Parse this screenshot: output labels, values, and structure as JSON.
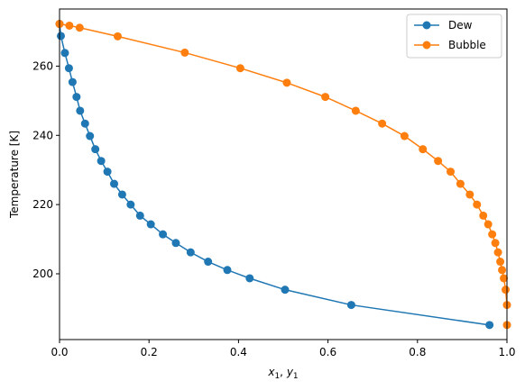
{
  "chart_data": {
    "type": "line",
    "xlabel_main": "x",
    "xlabel_sub1": "1",
    "xlabel_sep": ", ",
    "xlabel_main2": "y",
    "xlabel_sub2": "1",
    "ylabel": "Temperature [K]",
    "xlim": [
      0.0,
      1.0
    ],
    "ylim": [
      181.0,
      276.5
    ],
    "xticks": [
      0.0,
      0.2,
      0.4,
      0.6,
      0.8,
      1.0
    ],
    "xtick_labels": [
      "0.0",
      "0.2",
      "0.4",
      "0.6",
      "0.8",
      "1.0"
    ],
    "yticks": [
      200,
      220,
      240,
      260
    ],
    "ytick_labels": [
      "200",
      "220",
      "240",
      "260"
    ],
    "grid": false,
    "legend_position": "top-right",
    "series": [
      {
        "name": "Dew",
        "color": "#1f77b4",
        "marker": "circle",
        "x": [
          0.0,
          0.003,
          0.012,
          0.021,
          0.029,
          0.038,
          0.046,
          0.057,
          0.068,
          0.08,
          0.093,
          0.107,
          0.122,
          0.14,
          0.159,
          0.18,
          0.204,
          0.231,
          0.26,
          0.293,
          0.332,
          0.375,
          0.425,
          0.504,
          0.652,
          0.961
        ],
        "y": [
          272.2,
          268.7,
          263.8,
          259.4,
          255.4,
          251.1,
          247.1,
          243.4,
          239.8,
          236.0,
          232.6,
          229.5,
          226.0,
          222.9,
          220.0,
          216.8,
          214.3,
          211.4,
          208.9,
          206.2,
          203.5,
          201.1,
          198.7,
          195.4,
          191.0,
          185.2
        ]
      },
      {
        "name": "Bubble",
        "color": "#ff7f0e",
        "marker": "circle",
        "x": [
          0.0,
          0.022,
          0.045,
          0.13,
          0.28,
          0.404,
          0.508,
          0.594,
          0.662,
          0.721,
          0.771,
          0.812,
          0.846,
          0.874,
          0.896,
          0.917,
          0.933,
          0.947,
          0.958,
          0.967,
          0.974,
          0.98,
          0.985,
          0.989,
          0.993,
          0.997,
          1.0
        ],
        "y": [
          272.2,
          271.7,
          271.1,
          268.6,
          263.9,
          259.4,
          255.2,
          251.1,
          247.1,
          243.4,
          239.8,
          236.0,
          232.6,
          229.5,
          226.0,
          222.9,
          220.0,
          216.8,
          214.3,
          211.4,
          208.9,
          206.2,
          203.5,
          201.1,
          198.7,
          195.4,
          191.0
        ]
      }
    ],
    "extra_points": [
      {
        "series": "Bubble",
        "x": 1.0,
        "y": 185.2
      }
    ]
  }
}
